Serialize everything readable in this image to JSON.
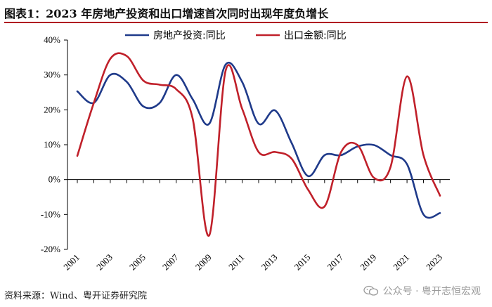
{
  "header": {
    "title": "图表1：2023 年房地产投资和出口增速首次同时出现年度负增长"
  },
  "footer": {
    "source": "资料来源：Wind、粤开证券研究院",
    "watermark": "公众号 · 粤开志恒宏观"
  },
  "chart_data": {
    "type": "line",
    "title": "",
    "xlabel": "",
    "ylabel": "",
    "ylim": [
      -20,
      40
    ],
    "xlim": [
      2001,
      2023
    ],
    "y_ticks": [
      -20,
      -10,
      0,
      10,
      20,
      30,
      40
    ],
    "y_tick_labels": [
      "-20%",
      "-10%",
      "0%",
      "10%",
      "20%",
      "30%",
      "40%"
    ],
    "x_tick_labels": [
      "2001",
      "2003",
      "2005",
      "2007",
      "2009",
      "2011",
      "2013",
      "2015",
      "2017",
      "2019",
      "2021",
      "2023"
    ],
    "grid": false,
    "legend_position": "top",
    "x": [
      2001,
      2002,
      2003,
      2004,
      2005,
      2006,
      2007,
      2008,
      2009,
      2010,
      2011,
      2012,
      2013,
      2014,
      2015,
      2016,
      2017,
      2018,
      2019,
      2020,
      2021,
      2022,
      2023
    ],
    "series": [
      {
        "name": "房地产投资:同比",
        "color": "#1f3a8a",
        "values": [
          25.3,
          22.0,
          30.0,
          28.0,
          21.0,
          22.0,
          30.0,
          23.0,
          16.0,
          33.0,
          28.0,
          16.0,
          19.8,
          10.5,
          1.0,
          7.0,
          7.0,
          9.5,
          9.9,
          7.0,
          4.4,
          -10.0,
          -9.6
        ]
      },
      {
        "name": "出口金额:同比",
        "color": "#c0202a",
        "values": [
          6.8,
          22.0,
          34.6,
          35.4,
          28.4,
          27.2,
          25.9,
          17.4,
          -16.0,
          31.3,
          20.3,
          7.9,
          7.9,
          6.0,
          -2.9,
          -7.7,
          7.9,
          9.9,
          0.5,
          3.6,
          29.6,
          7.0,
          -4.6
        ]
      }
    ]
  }
}
